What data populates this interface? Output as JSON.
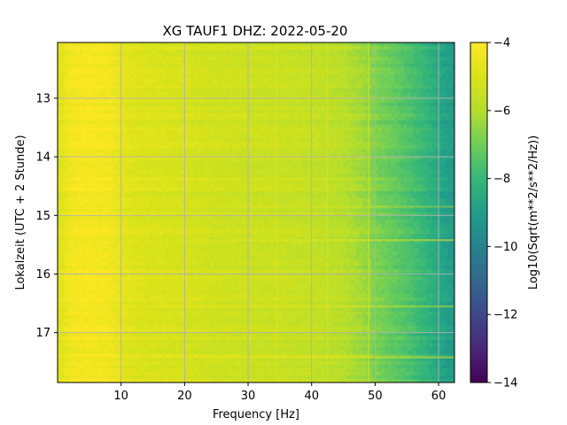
{
  "chart_data": {
    "type": "heatmap",
    "title": "XG TAUF1  DHZ: 2022-05-20",
    "xlabel": "Frequency [Hz]",
    "ylabel": "Lokalzeit (UTC + 2 Stunde)",
    "xlim": [
      0.0,
      62.5
    ],
    "ylim": [
      12.05,
      17.85
    ],
    "y_inverted": true,
    "xticks": [
      10,
      20,
      30,
      40,
      50,
      60
    ],
    "yticks": [
      13,
      14,
      15,
      16,
      17
    ],
    "grid": true,
    "colormap": "viridis",
    "colorbar": {
      "label": "Log10(Sqrt(m**2/s**2/Hz))",
      "vmin": -14,
      "vmax": -4,
      "ticks": [
        -4,
        -6,
        -8,
        -10,
        -12,
        -14
      ]
    },
    "profile": {
      "frequency_hz": [
        0,
        2,
        5,
        8,
        10,
        12,
        15,
        20,
        25,
        30,
        35,
        40,
        45,
        48,
        50,
        53,
        56,
        58,
        60,
        62.5
      ],
      "log10_amplitude": [
        -5.0,
        -4.3,
        -4.2,
        -4.3,
        -4.7,
        -4.9,
        -5.0,
        -5.1,
        -5.3,
        -5.4,
        -5.5,
        -5.6,
        -5.9,
        -6.3,
        -6.8,
        -7.2,
        -7.7,
        -8.1,
        -8.6,
        -9.1
      ]
    },
    "line_features": [
      {
        "type": "horizontal",
        "time": 15.42,
        "level": 0.55
      },
      {
        "type": "horizontal",
        "time": 16.55,
        "level": 0.4
      },
      {
        "type": "horizontal",
        "time": 17.42,
        "level": 0.5
      },
      {
        "type": "horizontal",
        "time": 14.85,
        "level": 0.35
      },
      {
        "type": "vertical",
        "frequency": 34.5,
        "level": 0.5
      },
      {
        "type": "vertical",
        "frequency": 42.5,
        "level": 0.45
      },
      {
        "type": "vertical",
        "frequency": 49.0,
        "level": 0.5
      }
    ]
  }
}
